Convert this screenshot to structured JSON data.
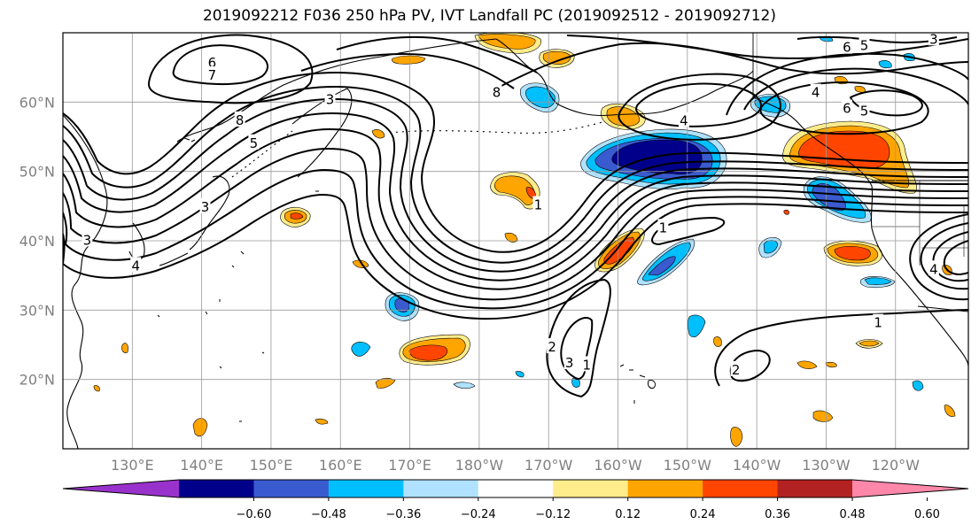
{
  "title": "2019092212 F036 250 hPa PV, IVT Landfall PC (2019092512 - 2019092712)",
  "lat_labels": [
    {
      "label": "60°N",
      "lat": 60
    },
    {
      "label": "50°N",
      "lat": 50
    },
    {
      "label": "40°N",
      "lat": 40
    },
    {
      "label": "30°N",
      "lat": 30
    },
    {
      "label": "20°N",
      "lat": 20
    }
  ],
  "lon_labels": [
    {
      "label": "130°E",
      "lon": 130
    },
    {
      "label": "140°E",
      "lon": 140
    },
    {
      "label": "150°E",
      "lon": 150
    },
    {
      "label": "160°E",
      "lon": 160
    },
    {
      "label": "170°E",
      "lon": 170
    },
    {
      "label": "180°W",
      "lon": 180
    },
    {
      "label": "170°W",
      "lon": 190
    },
    {
      "label": "160°W",
      "lon": 200
    },
    {
      "label": "150°W",
      "lon": 210
    },
    {
      "label": "140°W",
      "lon": 220
    },
    {
      "label": "130°W",
      "lon": 230
    },
    {
      "label": "120°W",
      "lon": 240
    }
  ],
  "map_extent": {
    "lon_min": 120,
    "lon_max": 250.5,
    "lat_min": 10,
    "lat_max": 70
  },
  "colorbar": {
    "colors": [
      "#9932cc",
      "#00008b",
      "#3a5bcf",
      "#00bfff",
      "#b0e2ff",
      "#ffffff",
      "#ffec8b",
      "#ffa500",
      "#ff4500",
      "#b22222",
      "#ff88aa"
    ],
    "tick_labels": [
      "−0.60",
      "−0.48",
      "−0.36",
      "−0.24",
      "−0.12",
      "0.12",
      "0.24",
      "0.36",
      "0.48",
      "0.60"
    ]
  },
  "contour_labels": [
    {
      "text": "6",
      "lon": 141.5,
      "lat": 65.8
    },
    {
      "text": "7",
      "lon": 141.5,
      "lat": 64.0
    },
    {
      "text": "8",
      "lon": 145.5,
      "lat": 57.5
    },
    {
      "text": "5",
      "lon": 147.5,
      "lat": 54.2
    },
    {
      "text": "4",
      "lon": 130.5,
      "lat": 36.5
    },
    {
      "text": "3",
      "lon": 123.5,
      "lat": 40.2
    },
    {
      "text": "3",
      "lon": 140.5,
      "lat": 45.0
    },
    {
      "text": "3",
      "lon": 158.5,
      "lat": 60.5
    },
    {
      "text": "8",
      "lon": 182.5,
      "lat": 61.5
    },
    {
      "text": "1",
      "lon": 188.5,
      "lat": 45.3
    },
    {
      "text": "1",
      "lon": 206.5,
      "lat": 42.0
    },
    {
      "text": "4",
      "lon": 209.5,
      "lat": 57.4
    },
    {
      "text": "4",
      "lon": 228.5,
      "lat": 61.5
    },
    {
      "text": "6",
      "lon": 233.0,
      "lat": 68.0
    },
    {
      "text": "5",
      "lon": 235.5,
      "lat": 68.3
    },
    {
      "text": "3",
      "lon": 245.5,
      "lat": 69.2
    },
    {
      "text": "6",
      "lon": 233.0,
      "lat": 59.2
    },
    {
      "text": "5",
      "lon": 235.5,
      "lat": 58.8
    },
    {
      "text": "1",
      "lon": 237.5,
      "lat": 28.3
    },
    {
      "text": "2",
      "lon": 217.0,
      "lat": 21.5
    },
    {
      "text": "2",
      "lon": 190.5,
      "lat": 24.8
    },
    {
      "text": "3",
      "lon": 193.0,
      "lat": 22.5
    },
    {
      "text": "1",
      "lon": 195.5,
      "lat": 22.2
    },
    {
      "text": "4",
      "lon": 245.5,
      "lat": 36.0
    }
  ]
}
